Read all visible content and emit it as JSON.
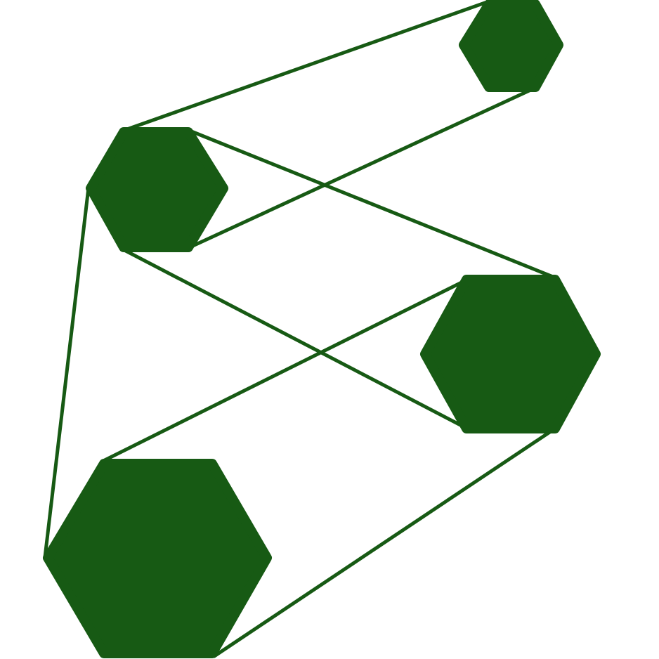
{
  "colors": {
    "background": "#ffffff",
    "hexagon_fill": "#175a14",
    "line_stroke": "#175a14"
  },
  "icons": {
    "hexagon": "hexagon-icon"
  }
}
